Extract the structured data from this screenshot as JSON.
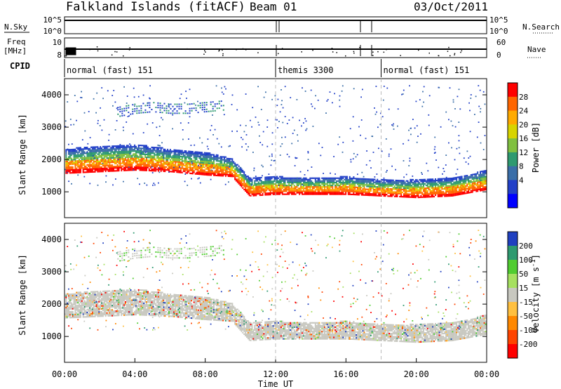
{
  "chart_data": [
    {
      "type": "heatmap",
      "panel": "header",
      "title": "Falkland Islands (fitACF)",
      "beam": "Beam 01",
      "date": "03/Oct/2011",
      "left_labels": {
        "nsky": "N.Sky",
        "freq": "Freq",
        "freq_unit": "[MHz]",
        "cpid": "CPID"
      },
      "right_labels": {
        "nsearch": "N.Search",
        "nave": "Nave"
      },
      "noise_axis_ticks": [
        "10^5",
        "10^0"
      ],
      "freq_axis_ticks": [
        "10",
        "8"
      ],
      "nave_axis_ticks": [
        "60",
        "0"
      ],
      "cpid_segments": [
        {
          "label": "normal (fast) 151",
          "start_hour": 0,
          "end_hour": 12
        },
        {
          "label": "themis 3300",
          "start_hour": 12,
          "end_hour": 18
        },
        {
          "label": "normal (fast) 151",
          "start_hour": 18,
          "end_hour": 24
        }
      ]
    },
    {
      "type": "heatmap",
      "panel": "power",
      "ylabel": "Slant Range [km]",
      "xlabel": "",
      "xlim": [
        0,
        24
      ],
      "ylim": [
        200,
        4500
      ],
      "yticks": [
        1000,
        2000,
        3000,
        4000
      ],
      "colorbar": {
        "label": "Power [dB]",
        "ticks": [
          "28",
          "24",
          "20",
          "16",
          "12",
          "8",
          "4"
        ],
        "colors": [
          "#ff0000",
          "#ff6600",
          "#ffaa00",
          "#d8d400",
          "#80c040",
          "#2e9a70",
          "#3a6ea8",
          "#2240c8",
          "#0000ff"
        ]
      },
      "echo_bands": [
        {
          "name": "main",
          "hours": [
            0,
            2,
            4,
            6,
            8,
            9.5,
            10.5,
            12,
            14,
            16,
            18,
            20,
            22,
            24
          ],
          "lower_km": [
            1600,
            1650,
            1700,
            1650,
            1550,
            1500,
            900,
            950,
            950,
            950,
            900,
            850,
            900,
            1100
          ],
          "upper_km": [
            2350,
            2450,
            2500,
            2350,
            2250,
            2050,
            1450,
            1500,
            1450,
            1500,
            1400,
            1400,
            1450,
            1700
          ]
        },
        {
          "name": "upper",
          "hours": [
            3,
            4,
            5,
            6,
            7,
            8,
            9
          ],
          "lower_km": [
            3350,
            3450,
            3500,
            3450,
            3450,
            3500,
            3550
          ],
          "upper_km": [
            3700,
            3800,
            3850,
            3800,
            3800,
            3850,
            3900
          ]
        }
      ]
    },
    {
      "type": "heatmap",
      "panel": "velocity",
      "ylabel": "Slant Range [km]",
      "xlabel": "Time UT",
      "xlim": [
        0,
        24
      ],
      "ylim": [
        200,
        4500
      ],
      "xticks": [
        "00:00",
        "04:00",
        "08:00",
        "12:00",
        "16:00",
        "20:00",
        "00:00"
      ],
      "yticks": [
        1000,
        2000,
        3000,
        4000
      ],
      "colorbar": {
        "label_main": "Velocity [m s",
        "label_exp": "-1",
        "label_end": "]",
        "ticks": [
          "200",
          "100",
          "50",
          "15",
          "-15",
          "-50",
          "-100",
          "-200"
        ],
        "colors": [
          "#2040c0",
          "#2e9a70",
          "#50cc30",
          "#a6e060",
          "#c8c8c0",
          "#ffc040",
          "#ff8800",
          "#ff4400",
          "#ff0000"
        ]
      }
    }
  ]
}
